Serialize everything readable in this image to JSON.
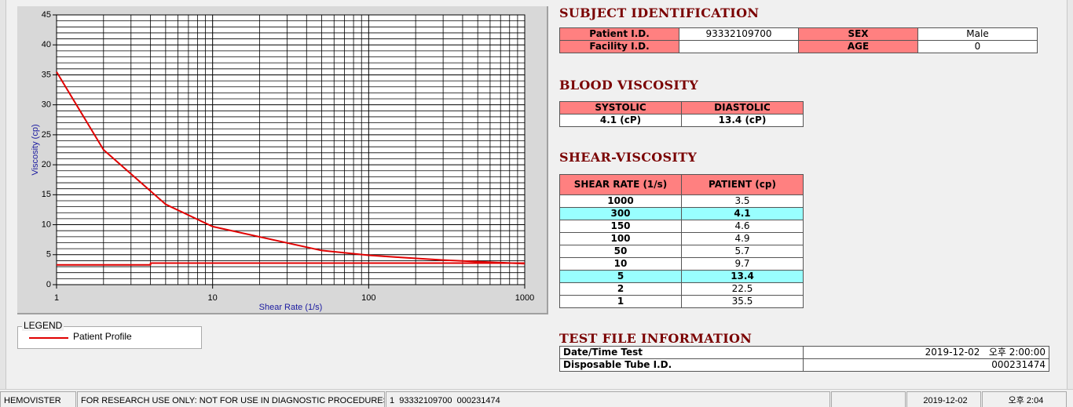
{
  "chart_data": {
    "type": "line",
    "x_label": "Shear Rate (1/s)",
    "y_label": "Viscosity (cp)",
    "xlog": true,
    "grid": true,
    "minor_grid": true,
    "xlim": [
      1,
      1000
    ],
    "ylim": [
      0,
      45
    ],
    "xticks": [
      1,
      10,
      100,
      1000
    ],
    "yticks": [
      0,
      5,
      10,
      15,
      20,
      25,
      30,
      35,
      40,
      45
    ],
    "series": [
      {
        "name": "Patient Profile",
        "color": "#e00000",
        "x": [
          1,
          2,
          5,
          10,
          50,
          100,
          150,
          300,
          1000
        ],
        "values": [
          35.5,
          22.5,
          13.4,
          9.7,
          5.7,
          4.9,
          4.6,
          4.1,
          3.5
        ]
      },
      {
        "color": "#e00000",
        "x": [
          1,
          4,
          4,
          1000
        ],
        "values": [
          3.3,
          3.3,
          3.6,
          3.6
        ]
      }
    ],
    "legend_title": "LEGEND"
  },
  "subject_identification": {
    "title": "SUBJECT IDENTIFICATION",
    "fields": [
      {
        "label": "Patient I.D.",
        "value": "93332109700"
      },
      {
        "label": "SEX",
        "value": "Male"
      },
      {
        "label": "Facility I.D."
      },
      {
        "label": "AGE",
        "value": "0"
      }
    ]
  },
  "blood_viscosity": {
    "title": "BLOOD VISCOSITY",
    "headers": [
      "SYSTOLIC",
      "DIASTOLIC"
    ],
    "values": [
      "4.1 (cP)",
      "13.4 (cP)"
    ]
  },
  "shear_viscosity": {
    "title": "SHEAR-VISCOSITY",
    "headers": [
      "SHEAR RATE (1/s)",
      "PATIENT (cp)"
    ],
    "rows": [
      {
        "shear_rate": "1000",
        "patient": "3.5"
      },
      {
        "shear_rate": "300",
        "patient": "4.1",
        "highlight": true
      },
      {
        "shear_rate": "150",
        "patient": "4.6"
      },
      {
        "shear_rate": "100",
        "patient": "4.9"
      },
      {
        "shear_rate": "50",
        "patient": "5.7"
      },
      {
        "shear_rate": "10",
        "patient": "9.7"
      },
      {
        "shear_rate": "5",
        "patient": "13.4",
        "highlight": true
      },
      {
        "shear_rate": "2",
        "patient": "22.5"
      },
      {
        "shear_rate": "1",
        "patient": "35.5"
      }
    ]
  },
  "test_file_information": {
    "title": "TEST FILE INFORMATION",
    "rows": [
      {
        "label": "Date/Time Test",
        "value": "2019-12-02   오후 2:00:00"
      },
      {
        "label": "Disposable Tube I.D.",
        "value": "000231474"
      }
    ]
  },
  "status_bar": {
    "app": "HEMOVISTER",
    "notice": "FOR RESEARCH USE ONLY: NOT FOR USE IN DIAGNOSTIC PROCEDURES",
    "record": "1  93332109700  000231474",
    "date": "2019-12-02",
    "time": "오후 2:04"
  }
}
